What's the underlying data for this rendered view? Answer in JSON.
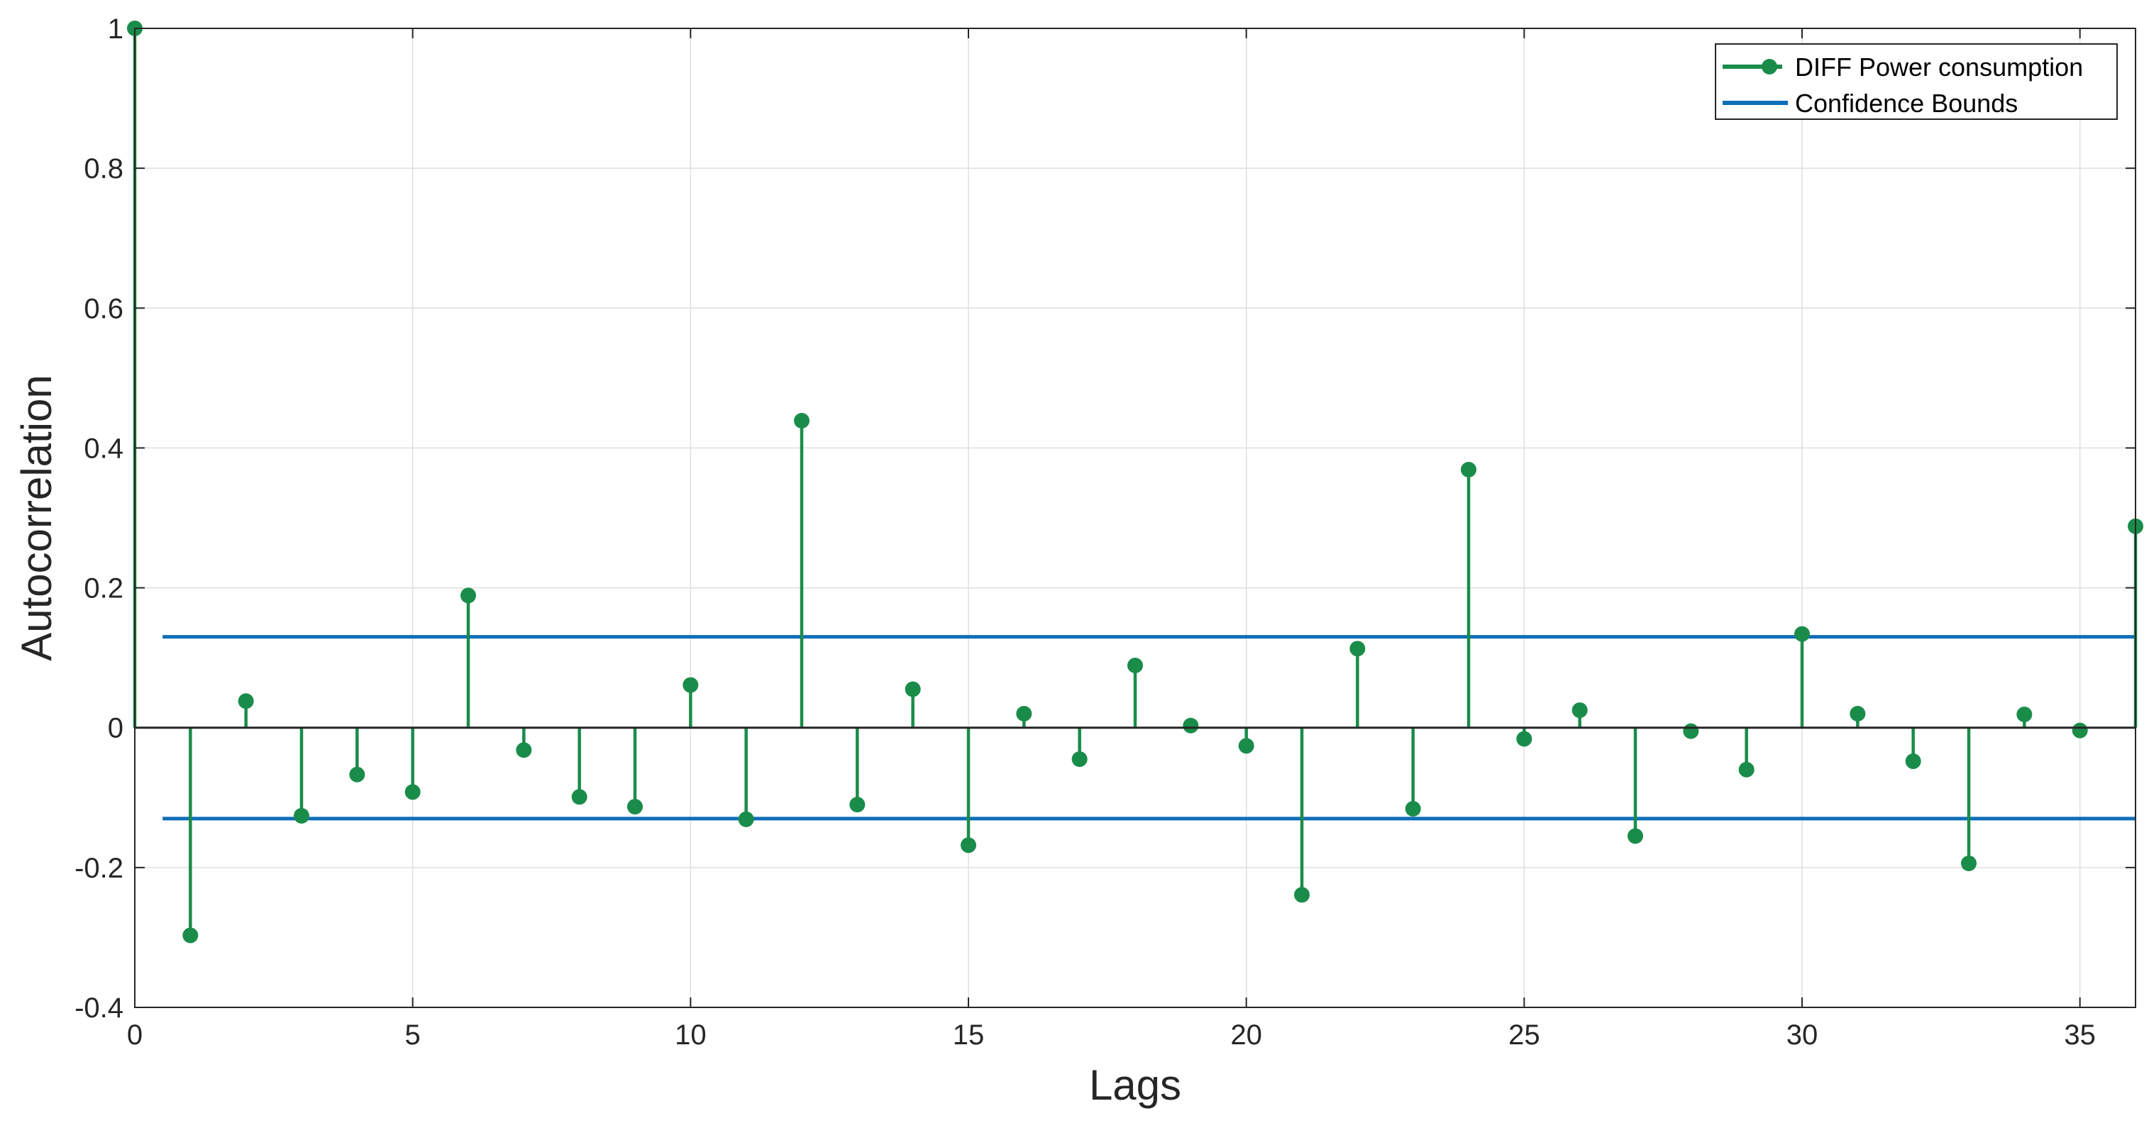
{
  "chart_data": {
    "type": "stem",
    "xlabel": "Lags",
    "ylabel": "Autocorrelation",
    "xlim": [
      0,
      36
    ],
    "ylim": [
      -0.4,
      1
    ],
    "xticks": [
      0,
      5,
      10,
      15,
      20,
      25,
      30,
      35
    ],
    "xtick_labels": [
      "0",
      "5",
      "10",
      "15",
      "20",
      "25",
      "30",
      "35"
    ],
    "yticks": [
      -0.4,
      -0.2,
      0,
      0.2,
      0.4,
      0.6,
      0.8,
      1
    ],
    "ytick_labels": [
      "-0.4",
      "-0.2",
      "0",
      "0.2",
      "0.4",
      "0.6",
      "0.8",
      "1"
    ],
    "grid": true,
    "legend_position": "top-right",
    "series": [
      {
        "name": "DIFF Power consumption",
        "color": "#1a8c4a",
        "x": [
          0,
          1,
          2,
          3,
          4,
          5,
          6,
          7,
          8,
          9,
          10,
          11,
          12,
          13,
          14,
          15,
          16,
          17,
          18,
          19,
          20,
          21,
          22,
          23,
          24,
          25,
          26,
          27,
          28,
          29,
          30,
          31,
          32,
          33,
          34,
          35,
          36
        ],
        "values": [
          1.0,
          -0.297,
          0.038,
          -0.126,
          -0.067,
          -0.092,
          0.189,
          -0.032,
          -0.099,
          -0.113,
          0.061,
          -0.131,
          0.439,
          -0.11,
          0.055,
          -0.168,
          0.02,
          -0.045,
          0.089,
          0.003,
          -0.026,
          -0.239,
          0.113,
          -0.116,
          0.369,
          -0.016,
          0.025,
          -0.155,
          -0.005,
          -0.06,
          0.134,
          0.02,
          -0.048,
          -0.194,
          0.019,
          -0.004,
          0.288
        ]
      }
    ],
    "bounds": {
      "name": "Confidence Bounds",
      "color": "#0e6eb8",
      "upper": 0.13,
      "lower": -0.13,
      "x_range": [
        0.5,
        36
      ]
    }
  }
}
